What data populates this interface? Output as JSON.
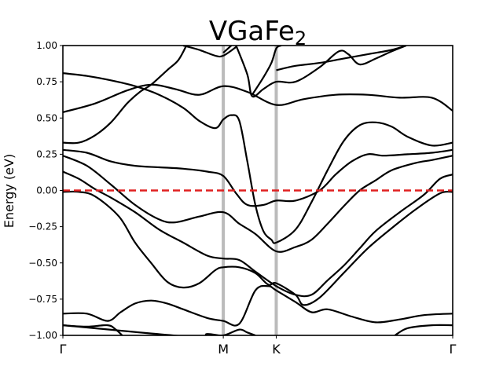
{
  "chart_data": {
    "type": "line",
    "title": "VGaFe",
    "title_subscript": "2",
    "xlabel": "",
    "ylabel": "Energy (eV)",
    "ylim": [
      -1.0,
      1.0
    ],
    "xlim": [
      0,
      2.43
    ],
    "y_ticks": [
      -1.0,
      -0.75,
      -0.5,
      -0.25,
      0.0,
      0.25,
      0.5,
      0.75,
      1.0
    ],
    "y_tick_labels": [
      "−1.00",
      "−0.75",
      "−0.50",
      "−0.25",
      "0.00",
      "0.25",
      "0.50",
      "0.75",
      "1.00"
    ],
    "kpoints": [
      {
        "label": "Γ",
        "x": 0.0
      },
      {
        "label": "M",
        "x": 1.0
      },
      {
        "label": "K",
        "x": 1.33
      },
      {
        "label": "Γ",
        "x": 2.43
      }
    ],
    "kpoint_line_color": "#bbbbbb",
    "band_color": "#000000",
    "fermi_level": {
      "y": 0.0,
      "color": "#e02020",
      "style": "dashed"
    },
    "grid": false,
    "series": [
      {
        "points": [
          [
            0.0,
            0.81
          ],
          [
            0.15,
            0.79
          ],
          [
            0.3,
            0.76
          ],
          [
            0.45,
            0.72
          ],
          [
            0.6,
            0.66
          ],
          [
            0.75,
            0.57
          ],
          [
            0.85,
            0.48
          ],
          [
            0.95,
            0.43
          ],
          [
            1.0,
            0.49
          ],
          [
            1.05,
            0.52
          ],
          [
            1.1,
            0.48
          ],
          [
            1.15,
            0.2
          ],
          [
            1.2,
            -0.1
          ],
          [
            1.25,
            -0.28
          ],
          [
            1.3,
            -0.34
          ],
          [
            1.33,
            -0.36
          ],
          [
            1.45,
            -0.27
          ],
          [
            1.55,
            -0.08
          ],
          [
            1.65,
            0.14
          ],
          [
            1.75,
            0.34
          ],
          [
            1.85,
            0.45
          ],
          [
            1.95,
            0.47
          ],
          [
            2.05,
            0.44
          ],
          [
            2.15,
            0.37
          ],
          [
            2.3,
            0.31
          ],
          [
            2.43,
            0.33
          ]
        ]
      },
      {
        "points": [
          [
            0.0,
            0.54
          ],
          [
            0.2,
            0.6
          ],
          [
            0.4,
            0.69
          ],
          [
            0.55,
            0.73
          ],
          [
            0.7,
            0.7
          ],
          [
            0.85,
            0.66
          ],
          [
            1.0,
            0.72
          ],
          [
            1.15,
            0.68
          ],
          [
            1.33,
            0.59
          ],
          [
            1.5,
            0.63
          ],
          [
            1.7,
            0.66
          ],
          [
            1.9,
            0.66
          ],
          [
            2.1,
            0.64
          ],
          [
            2.3,
            0.64
          ],
          [
            2.43,
            0.55
          ]
        ]
      },
      {
        "points": [
          [
            0.0,
            0.33
          ],
          [
            0.1,
            0.33
          ],
          [
            0.2,
            0.38
          ],
          [
            0.3,
            0.47
          ],
          [
            0.4,
            0.6
          ],
          [
            0.48,
            0.68
          ],
          [
            0.55,
            0.73
          ],
          [
            0.65,
            0.83
          ],
          [
            0.72,
            0.9
          ],
          [
            0.77,
            1.0
          ]
        ]
      },
      {
        "points": [
          [
            0.0,
            0.28
          ],
          [
            0.15,
            0.26
          ],
          [
            0.3,
            0.2
          ],
          [
            0.45,
            0.17
          ],
          [
            0.6,
            0.16
          ],
          [
            0.75,
            0.15
          ],
          [
            0.9,
            0.13
          ],
          [
            1.0,
            0.1
          ],
          [
            1.08,
            -0.02
          ],
          [
            1.15,
            -0.1
          ],
          [
            1.25,
            -0.1
          ],
          [
            1.33,
            -0.07
          ],
          [
            1.45,
            -0.07
          ],
          [
            1.6,
            0.0
          ],
          [
            1.7,
            0.11
          ],
          [
            1.8,
            0.2
          ],
          [
            1.9,
            0.25
          ],
          [
            2.0,
            0.24
          ],
          [
            2.15,
            0.25
          ],
          [
            2.3,
            0.26
          ],
          [
            2.43,
            0.28
          ]
        ]
      },
      {
        "points": [
          [
            0.0,
            0.24
          ],
          [
            0.15,
            0.17
          ],
          [
            0.3,
            0.04
          ],
          [
            0.45,
            -0.1
          ],
          [
            0.6,
            -0.2
          ],
          [
            0.7,
            -0.22
          ],
          [
            0.85,
            -0.18
          ],
          [
            1.0,
            -0.15
          ],
          [
            1.1,
            -0.23
          ],
          [
            1.2,
            -0.3
          ],
          [
            1.33,
            -0.42
          ],
          [
            1.45,
            -0.39
          ],
          [
            1.55,
            -0.34
          ],
          [
            1.65,
            -0.23
          ],
          [
            1.75,
            -0.11
          ],
          [
            1.85,
            -0.0
          ],
          [
            1.95,
            0.07
          ],
          [
            2.05,
            0.14
          ],
          [
            2.2,
            0.19
          ],
          [
            2.3,
            0.21
          ],
          [
            2.43,
            0.24
          ]
        ]
      },
      {
        "points": [
          [
            0.0,
            0.13
          ],
          [
            0.1,
            0.08
          ],
          [
            0.2,
            0.01
          ],
          [
            0.3,
            -0.05
          ],
          [
            0.45,
            -0.15
          ],
          [
            0.6,
            -0.27
          ],
          [
            0.75,
            -0.36
          ],
          [
            0.9,
            -0.45
          ],
          [
            1.0,
            -0.47
          ],
          [
            1.1,
            -0.48
          ],
          [
            1.2,
            -0.56
          ],
          [
            1.33,
            -0.66
          ],
          [
            1.45,
            -0.72
          ],
          [
            1.55,
            -0.72
          ],
          [
            1.65,
            -0.62
          ],
          [
            1.75,
            -0.52
          ],
          [
            1.85,
            -0.4
          ],
          [
            1.95,
            -0.28
          ],
          [
            2.1,
            -0.15
          ],
          [
            2.25,
            -0.03
          ],
          [
            2.35,
            0.08
          ],
          [
            2.43,
            0.11
          ]
        ]
      },
      {
        "points": [
          [
            0.0,
            -0.01
          ],
          [
            0.1,
            -0.01
          ],
          [
            0.2,
            -0.04
          ],
          [
            0.35,
            -0.18
          ],
          [
            0.45,
            -0.36
          ],
          [
            0.55,
            -0.5
          ],
          [
            0.65,
            -0.63
          ],
          [
            0.75,
            -0.67
          ],
          [
            0.85,
            -0.64
          ],
          [
            0.95,
            -0.55
          ],
          [
            1.0,
            -0.53
          ],
          [
            1.1,
            -0.53
          ],
          [
            1.2,
            -0.57
          ],
          [
            1.28,
            -0.65
          ],
          [
            1.33,
            -0.64
          ],
          [
            1.45,
            -0.72
          ],
          [
            1.5,
            -0.79
          ],
          [
            1.6,
            -0.74
          ],
          [
            1.75,
            -0.57
          ],
          [
            1.9,
            -0.4
          ],
          [
            2.05,
            -0.26
          ],
          [
            2.2,
            -0.13
          ],
          [
            2.35,
            -0.02
          ],
          [
            2.43,
            -0.01
          ]
        ]
      },
      {
        "points": [
          [
            0.0,
            -0.85
          ],
          [
            0.15,
            -0.85
          ],
          [
            0.28,
            -0.9
          ],
          [
            0.36,
            -0.84
          ],
          [
            0.45,
            -0.78
          ],
          [
            0.55,
            -0.76
          ],
          [
            0.65,
            -0.78
          ],
          [
            0.75,
            -0.82
          ],
          [
            0.9,
            -0.88
          ],
          [
            1.0,
            -0.9
          ],
          [
            1.1,
            -0.92
          ],
          [
            1.2,
            -0.69
          ],
          [
            1.28,
            -0.66
          ],
          [
            1.33,
            -0.69
          ],
          [
            1.45,
            -0.77
          ],
          [
            1.55,
            -0.84
          ],
          [
            1.65,
            -0.82
          ],
          [
            1.8,
            -0.87
          ],
          [
            1.95,
            -0.91
          ],
          [
            2.1,
            -0.89
          ],
          [
            2.25,
            -0.86
          ],
          [
            2.43,
            -0.85
          ]
        ]
      },
      {
        "points": [
          [
            0.0,
            -0.93
          ],
          [
            0.15,
            -0.94
          ],
          [
            0.28,
            -0.93
          ],
          [
            0.33,
            -0.96
          ],
          [
            0.37,
            -1.0
          ]
        ]
      },
      {
        "points": [
          [
            0.0,
            -0.93
          ],
          [
            0.8,
            -1.01
          ],
          [
            0.9,
            -0.99
          ],
          [
            1.0,
            -1.0
          ],
          [
            1.1,
            -0.96
          ],
          [
            1.15,
            -0.98
          ],
          [
            1.2,
            -1.0
          ]
        ]
      },
      {
        "points": [
          [
            1.0,
            0.95
          ],
          [
            1.05,
            1.0
          ]
        ]
      },
      {
        "points": [
          [
            0.75,
            1.0
          ],
          [
            0.85,
            0.97
          ],
          [
            0.95,
            0.93
          ],
          [
            1.0,
            0.93
          ],
          [
            1.08,
            0.99
          ]
        ]
      },
      {
        "points": [
          [
            1.08,
            1.0
          ],
          [
            1.15,
            0.8
          ],
          [
            1.18,
            0.65
          ],
          [
            1.25,
            0.7
          ],
          [
            1.33,
            0.75
          ],
          [
            1.45,
            0.75
          ],
          [
            1.6,
            0.85
          ],
          [
            1.72,
            0.96
          ],
          [
            1.78,
            0.94
          ],
          [
            1.85,
            0.87
          ],
          [
            1.95,
            0.91
          ],
          [
            2.05,
            0.96
          ],
          [
            2.14,
            1.0
          ]
        ]
      },
      {
        "points": [
          [
            1.33,
            0.83
          ],
          [
            1.45,
            0.86
          ],
          [
            1.6,
            0.88
          ],
          [
            1.75,
            0.91
          ],
          [
            1.9,
            0.94
          ],
          [
            2.05,
            0.97
          ],
          [
            2.14,
            1.0
          ]
        ]
      },
      {
        "points": [
          [
            1.18,
            0.66
          ],
          [
            1.25,
            0.78
          ],
          [
            1.3,
            0.88
          ],
          [
            1.33,
            0.98
          ],
          [
            1.36,
            1.0
          ]
        ]
      },
      {
        "points": [
          [
            2.07,
            -1.0
          ],
          [
            2.15,
            -0.95
          ],
          [
            2.3,
            -0.93
          ],
          [
            2.43,
            -0.93
          ]
        ]
      }
    ]
  }
}
